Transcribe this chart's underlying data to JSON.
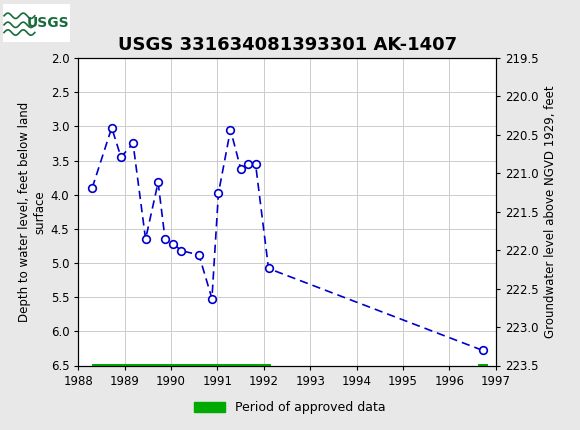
{
  "title": "USGS 331634081393301 AK-1407",
  "ylabel_left": "Depth to water level, feet below land\nsurface",
  "ylabel_right": "Groundwater level above NGVD 1929, feet",
  "xlim": [
    1988,
    1997
  ],
  "ylim_left": [
    2.0,
    6.5
  ],
  "ylim_right": [
    223.5,
    219.5
  ],
  "xticks": [
    1988,
    1989,
    1990,
    1991,
    1992,
    1993,
    1994,
    1995,
    1996,
    1997
  ],
  "yticks_left": [
    2.0,
    2.5,
    3.0,
    3.5,
    4.0,
    4.5,
    5.0,
    5.5,
    6.0,
    6.5
  ],
  "yticks_right": [
    223.5,
    223.0,
    222.5,
    222.0,
    221.5,
    221.0,
    220.5,
    220.0,
    219.5
  ],
  "yticks_right_labels": [
    "223.5",
    "223.0",
    "222.5",
    "222.0",
    "221.5",
    "221.0",
    "220.5",
    "220.0",
    "219.5"
  ],
  "data_x": [
    1988.3,
    1988.72,
    1988.92,
    1989.18,
    1989.45,
    1989.72,
    1989.87,
    1990.05,
    1990.22,
    1990.6,
    1990.88,
    1991.02,
    1991.28,
    1991.5,
    1991.65,
    1991.82,
    1992.1,
    1996.72
  ],
  "data_y": [
    3.9,
    3.02,
    3.45,
    3.25,
    4.65,
    3.82,
    4.65,
    4.72,
    4.82,
    4.88,
    5.52,
    3.98,
    3.05,
    3.62,
    3.55,
    3.55,
    5.08,
    6.28
  ],
  "line_color": "#0000cc",
  "marker_color": "#0000cc",
  "marker_face": "white",
  "grid_color": "#cccccc",
  "plot_bg_color": "#ffffff",
  "fig_bg_color": "#e8e8e8",
  "header_bg_color": "#1a6b3c",
  "header_logo_bg": "#ffffff",
  "approved_bar_x_start": 1988.3,
  "approved_bar_x_end": 1992.15,
  "approved_bar_x2_start": 1996.62,
  "approved_bar_x2_end": 1996.82,
  "approved_bar_y": 6.5,
  "approved_bar_height": 0.055,
  "approved_bar_color": "#00aa00",
  "legend_label": "Period of approved data",
  "title_fontsize": 13,
  "axis_label_fontsize": 8.5,
  "tick_fontsize": 8.5
}
